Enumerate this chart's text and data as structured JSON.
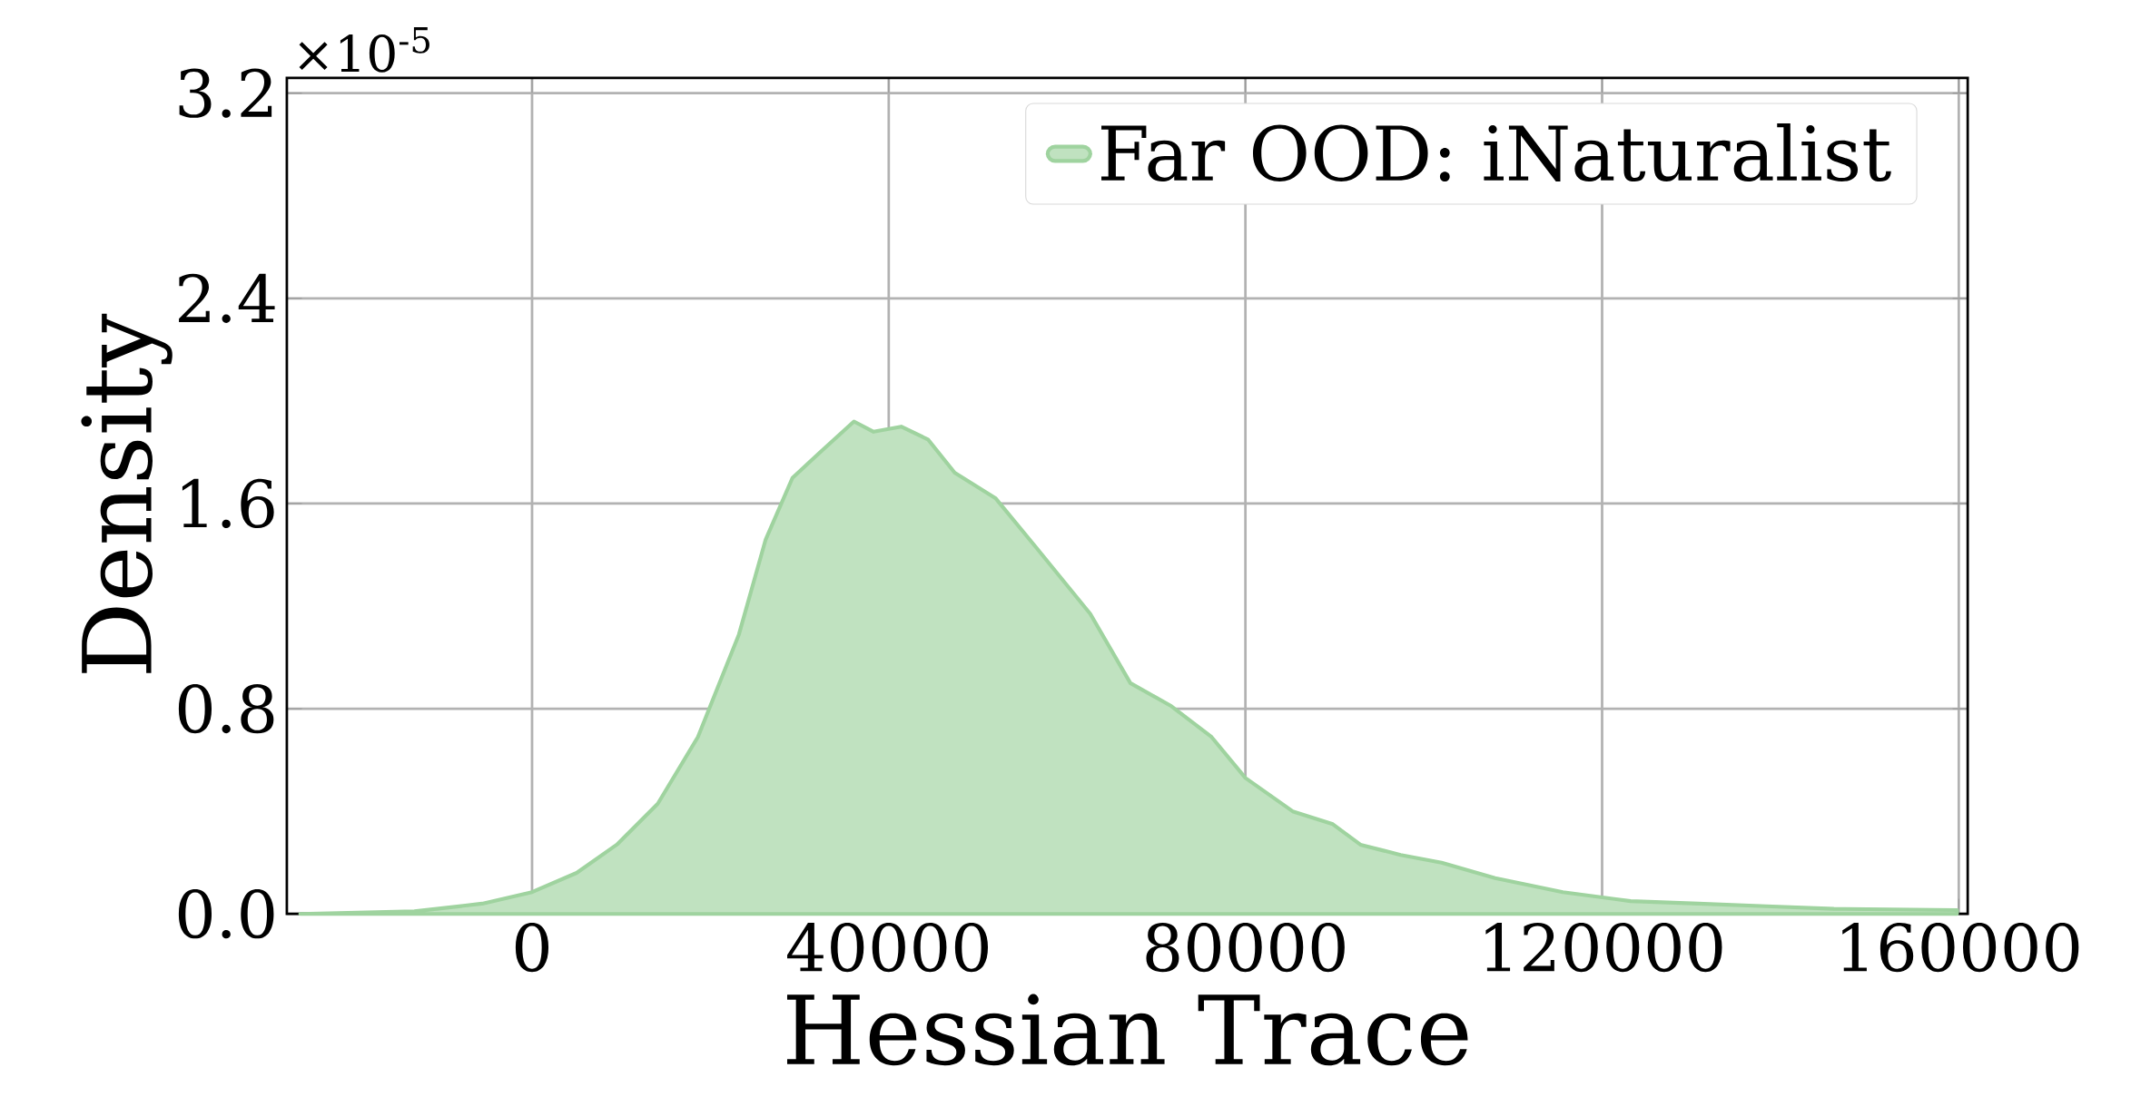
{
  "chart_data": {
    "type": "area",
    "xlabel": "Hessian Trace",
    "ylabel": "Density",
    "annotations": [
      "×10$^{-5}$"
    ],
    "x": [
      -26000,
      -13200,
      -5600,
      0,
      5000,
      9500,
      14100,
      18600,
      23200,
      26200,
      29200,
      32300,
      36100,
      38300,
      41400,
      44400,
      47400,
      52000,
      56500,
      62600,
      67100,
      71700,
      76200,
      80000,
      85300,
      89800,
      92900,
      97400,
      102000,
      108000,
      115600,
      123200,
      130800,
      138400,
      146000,
      159800
    ],
    "series": [
      {
        "name": "Far OOD: iNaturalist",
        "color": "#9fd39f",
        "values": [
          0,
          0.01,
          0.04,
          0.085,
          0.16,
          0.27,
          0.43,
          0.69,
          1.09,
          1.46,
          1.7,
          1.8,
          1.92,
          1.88,
          1.9,
          1.85,
          1.72,
          1.62,
          1.43,
          1.17,
          0.9,
          0.81,
          0.69,
          0.53,
          0.4,
          0.35,
          0.27,
          0.23,
          0.2,
          0.14,
          0.085,
          0.05,
          0.04,
          0.03,
          0.02,
          0.015
        ]
      }
    ],
    "xlim": [
      -27500,
      161000
    ],
    "ylim": [
      0,
      3.26
    ],
    "xticks": [
      0,
      40000,
      80000,
      120000,
      160000
    ],
    "yticks": [
      {
        "value": 0,
        "label": "0.0"
      },
      0.8,
      1.6,
      2.4,
      3.2
    ],
    "grid": true,
    "legend": "top right"
  }
}
